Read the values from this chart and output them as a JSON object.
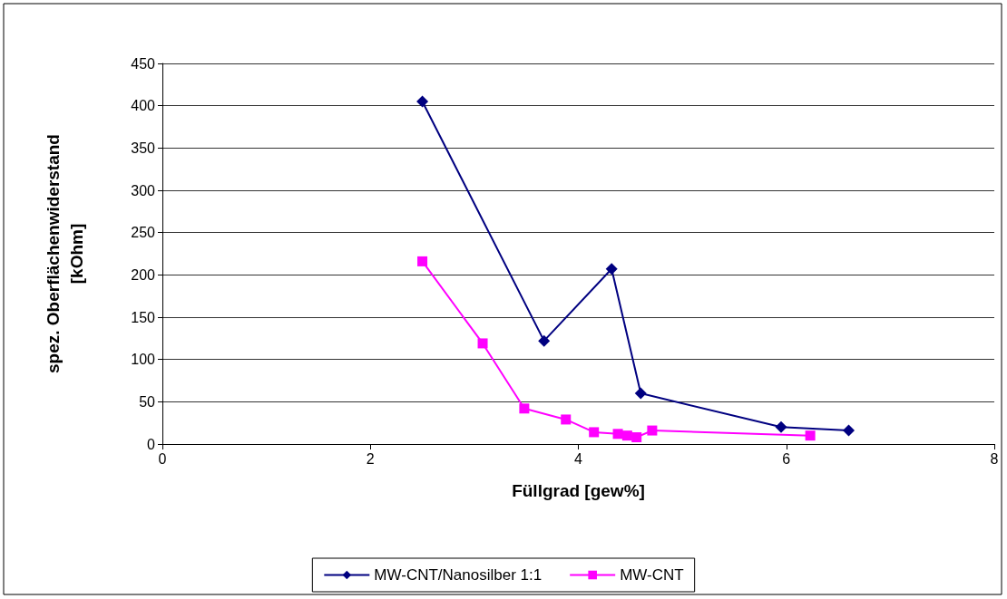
{
  "chart_data": {
    "type": "line",
    "xlabel": "Füllgrad [gew%]",
    "ylabel": "spez. Oberflächenwiderstand\n[kOhm]",
    "series": [
      {
        "name": "MW-CNT/Nanosilber 1:1",
        "color": "#000080",
        "marker": "diamond",
        "x": [
          2.5,
          3.67,
          4.32,
          4.6,
          5.95,
          6.6
        ],
        "values": [
          405,
          122,
          207,
          60,
          20,
          16
        ]
      },
      {
        "name": "MW-CNT",
        "color": "#ff00ff",
        "marker": "square",
        "x": [
          2.5,
          3.08,
          3.48,
          3.88,
          4.15,
          4.38,
          4.47,
          4.56,
          4.71,
          6.23
        ],
        "values": [
          216,
          119,
          42,
          29,
          14,
          12,
          10,
          8,
          16,
          10
        ]
      }
    ],
    "xlim": [
      0,
      8
    ],
    "xticks": [
      0,
      2,
      4,
      6,
      8
    ],
    "ylim": [
      0,
      450
    ],
    "yticks": [
      0,
      50,
      100,
      150,
      200,
      250,
      300,
      350,
      400,
      450
    ],
    "grid": "y",
    "legend": "bottom",
    "line_style": "solid"
  }
}
